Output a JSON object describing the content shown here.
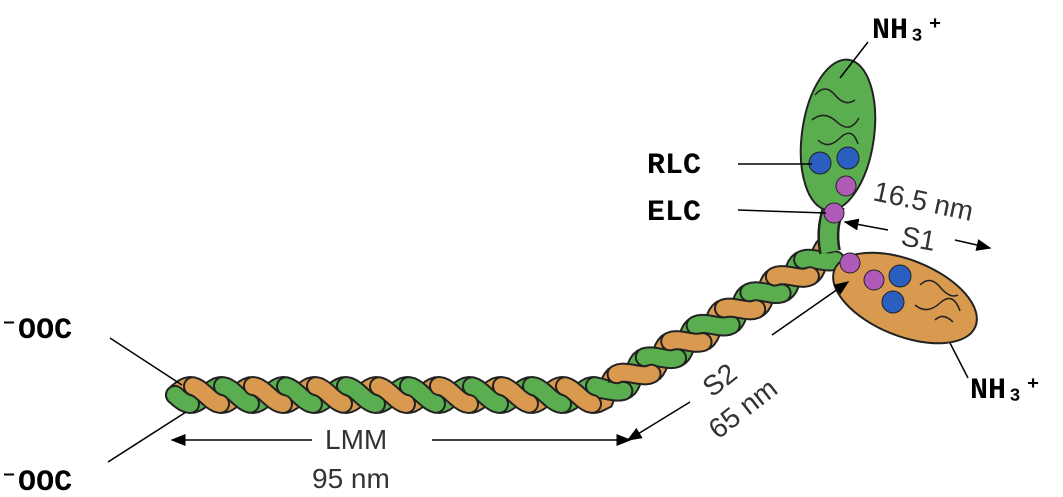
{
  "labels": [
    "NH₃⁺",
    "RLC",
    "ELC",
    "16.5 nm",
    "S1",
    "⁻OOC",
    "S2",
    "65 nm",
    "NH₃⁺",
    "LMM",
    "95 nm",
    "⁻OOC"
  ]
}
